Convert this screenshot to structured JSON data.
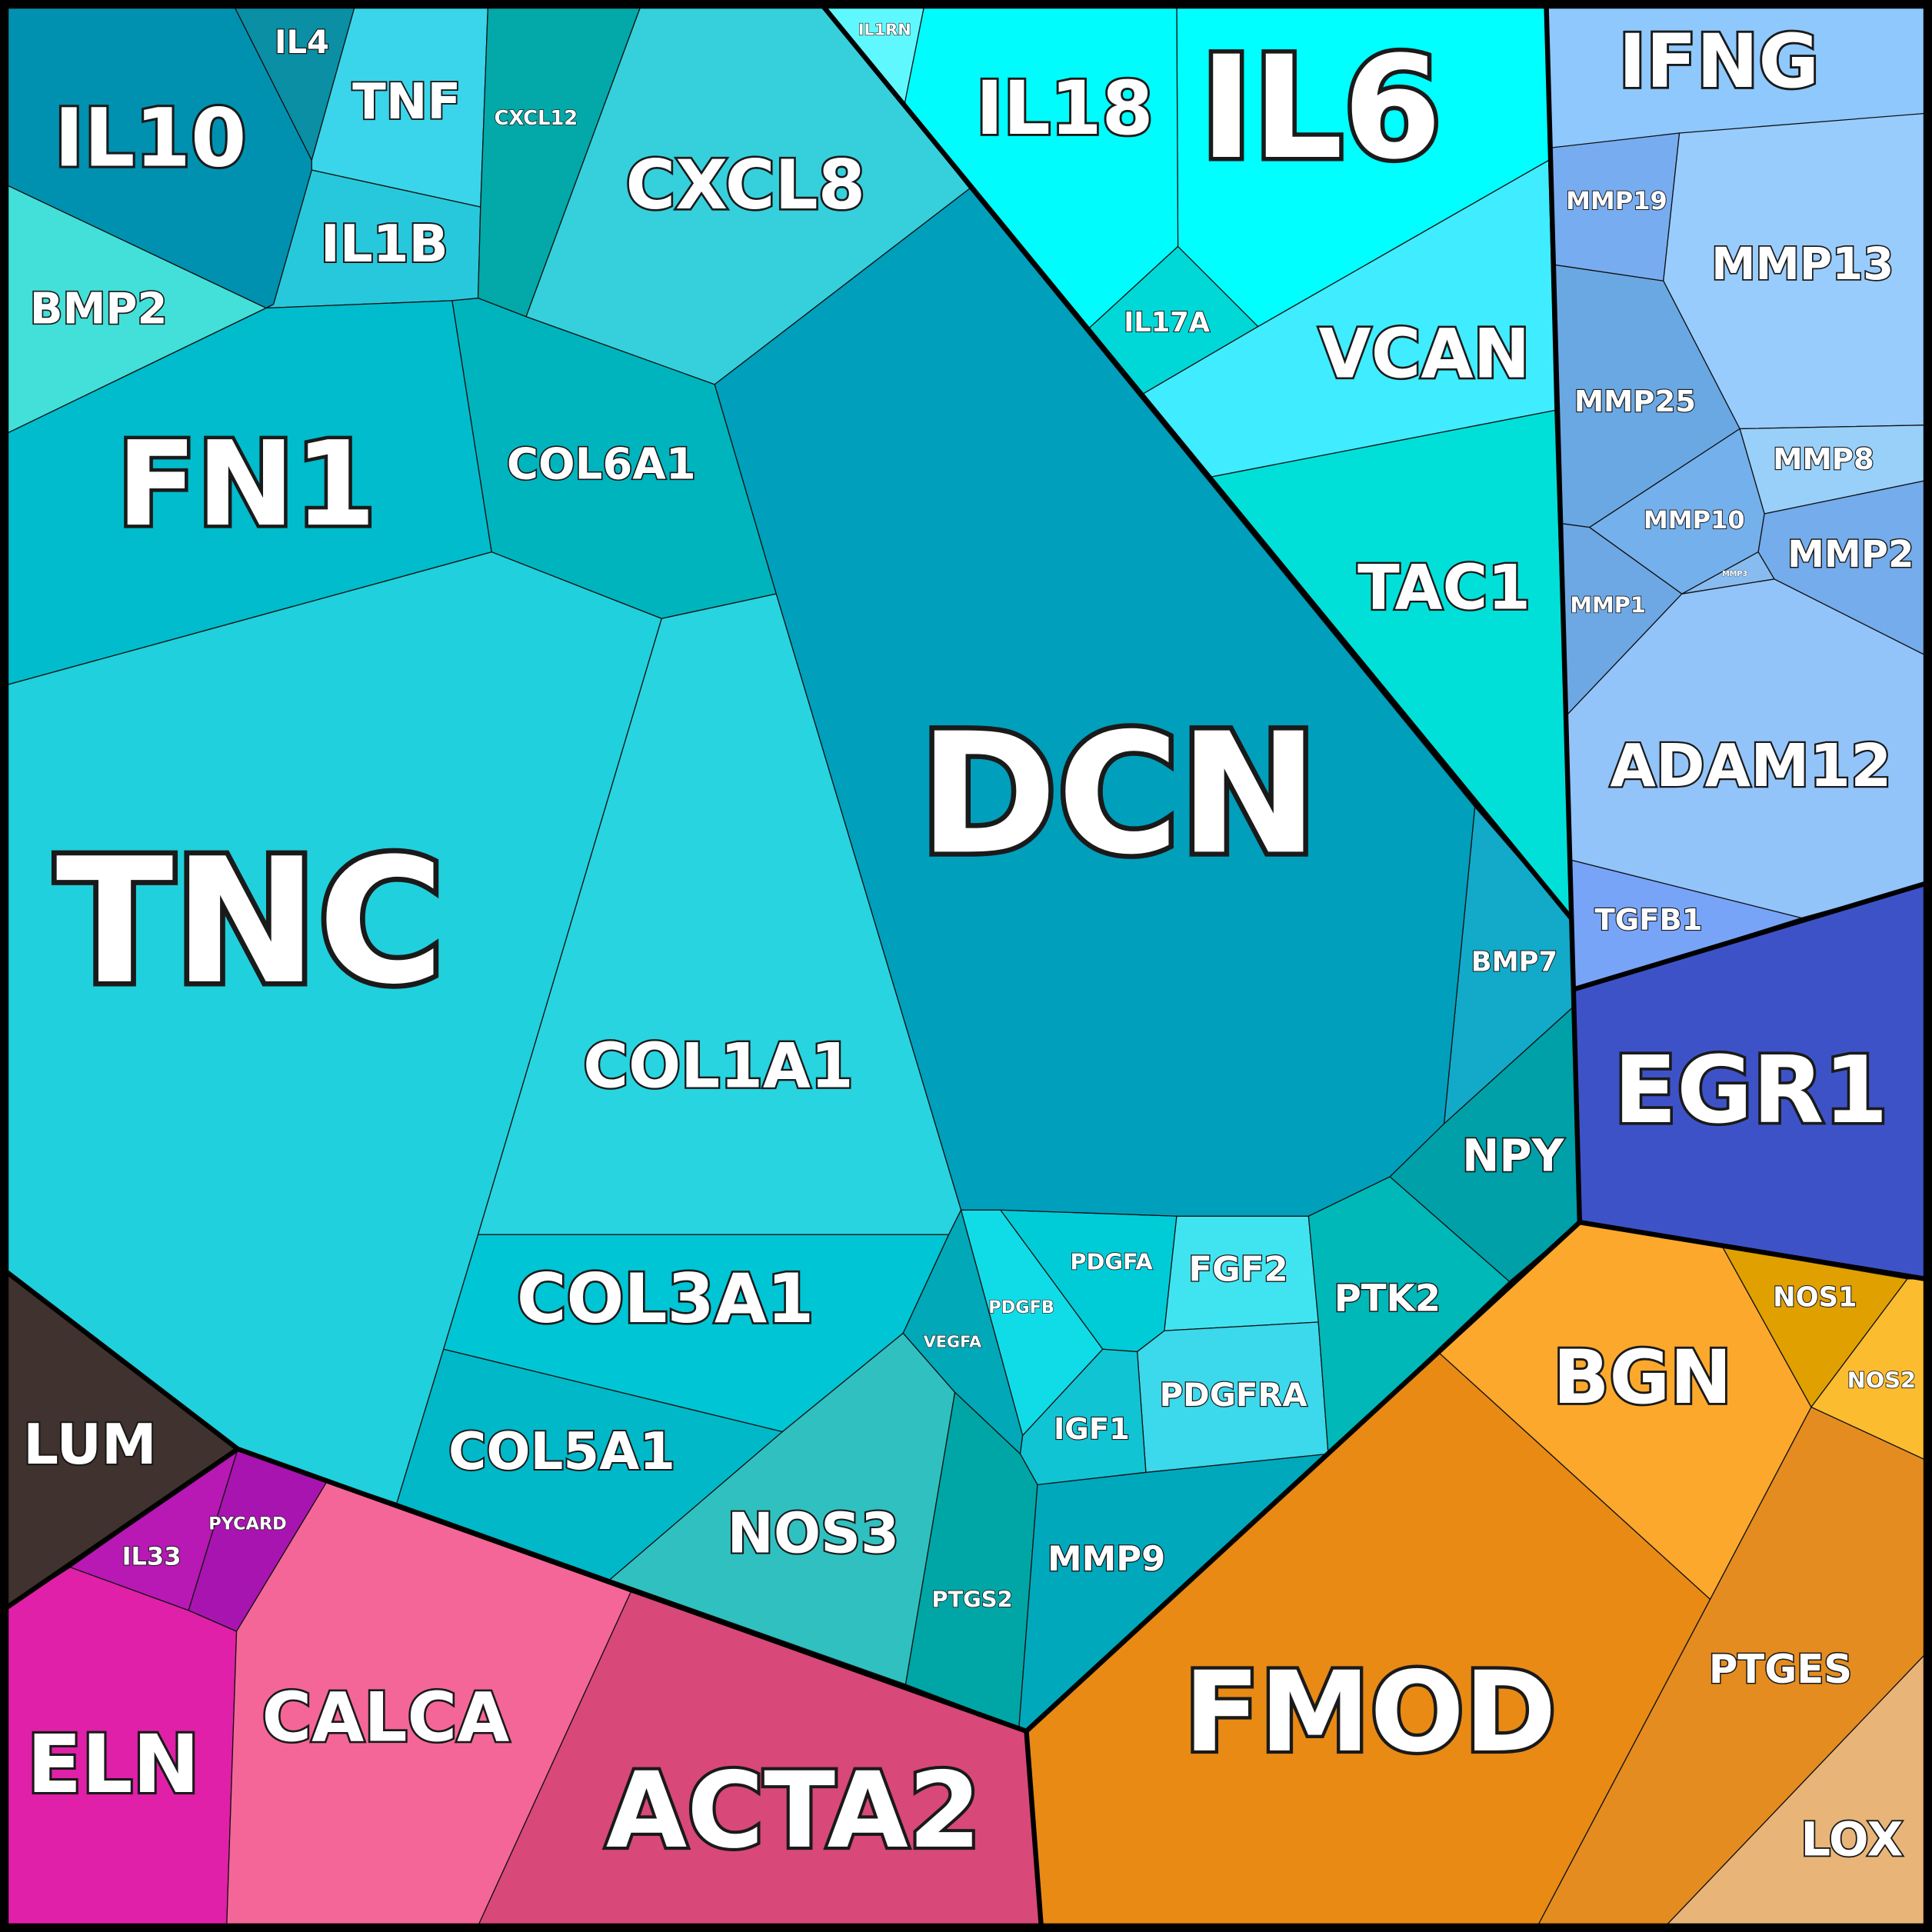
{
  "chart_data": {
    "type": "treemap",
    "categories": [
      "IL10",
      "IL4",
      "TNF",
      "IL1B",
      "CXCL12",
      "CXCL8",
      "BMP2",
      "FN1",
      "COL6A1",
      "TNC",
      "COL1A1",
      "COL3A1",
      "COL5A1",
      "NOS3",
      "VEGFA",
      "PDGFB",
      "PDGFA",
      "FGF2",
      "PDGFRA",
      "IGF1",
      "PTGS2",
      "MMP9",
      "PTK2",
      "NPY",
      "BMP7",
      "DCN",
      "TAC1",
      "VCAN",
      "IL17A",
      "IL6",
      "IL18",
      "IL1RN",
      "IFNG",
      "MMP19",
      "MMP13",
      "MMP25",
      "MMP8",
      "MMP10",
      "MMP2",
      "MMP3",
      "MMP1",
      "ADAM12",
      "TGFB1",
      "EGR1",
      "LUM",
      "PYCARD",
      "IL33",
      "ELN",
      "CALCA",
      "ACTA2",
      "FMOD",
      "BGN",
      "NOS1",
      "NOS2",
      "PTGES",
      "LOX"
    ],
    "colors": [
      "#0091b0",
      "#0a8fa5",
      "#3ad5ea",
      "#28c8dc",
      "#03a8a8",
      "#35d0dc",
      "#42e0d8",
      "#00bccc",
      "#00b4be",
      "#20d0dc",
      "#28d4e0",
      "#00c5d5",
      "#00b8c8",
      "#30c0c0",
      "#00a8b8",
      "#10dce8",
      "#00ccd8",
      "#40e4f0",
      "#3cd8ec",
      "#10c4d4",
      "#00a6a6",
      "#00a8bc",
      "#00b8b8",
      "#00a0a8",
      "#12aac8",
      "#009fbc",
      "#00e0d8",
      "#40ecff",
      "#00d8d8",
      "#00ffff",
      "#00fcfc",
      "#60f8ff",
      "#8ec8fc",
      "#78acf0",
      "#98ccfc",
      "#6aa8e4",
      "#98d0fa",
      "#74b0ec",
      "#74acec",
      "#88bcf0",
      "#6ea8e4",
      "#92c4fa",
      "#78a4f8",
      "#3e52c8",
      "#40322e",
      "#a814b0",
      "#b818b4",
      "#e020a8",
      "#f46698",
      "#d84878",
      "#e88a14",
      "#fca82c",
      "#e0a000",
      "#fcbc30",
      "#e48c20",
      "#e8b478"
    ]
  }
}
